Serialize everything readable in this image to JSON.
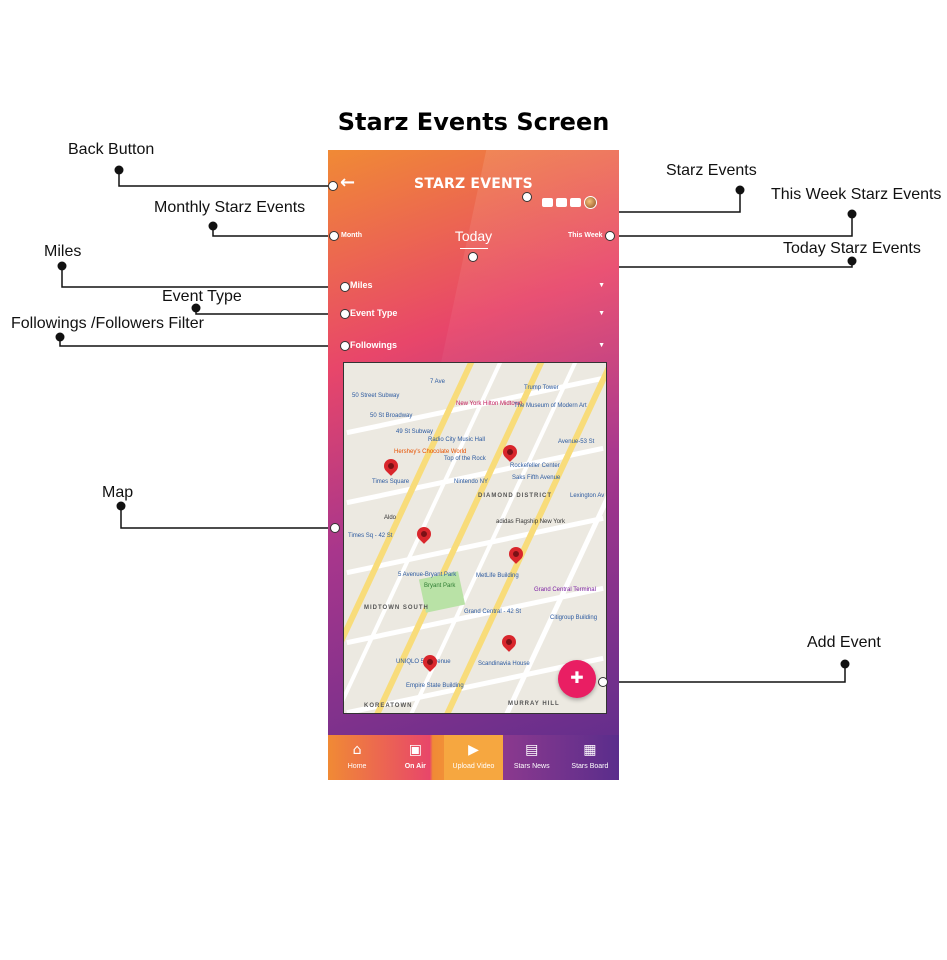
{
  "page": {
    "title": "Starz Events  Screen"
  },
  "annotations": {
    "back_button": "Back Button",
    "monthly": "Monthly Starz Events",
    "miles": "Miles",
    "event_type": "Event Type",
    "followings_filter": "Followings /Followers Filter",
    "map": "Map",
    "starz_events": "Starz Events",
    "this_week": "This Week Starz Events",
    "today": "Today Starz Events",
    "add_event": "Add Event"
  },
  "app": {
    "header": {
      "back_icon": "arrow-left-icon",
      "title": "STARZ EVENTS"
    },
    "segments": {
      "month": "Month",
      "today": "Today",
      "this_week": "This Week"
    },
    "filters": {
      "miles": "Miles",
      "event_type": "Event Type",
      "followings": "Followings"
    },
    "map": {
      "labels": [
        "7 Ave",
        "Trump Tower",
        "50 Street Subway",
        "New York Hilton Midtown",
        "The Museum of Modern Art",
        "50 St Broadway",
        "49 St Subway",
        "Radio City Music Hall",
        "Avenue-53 St",
        "Hershey's Chocolate World",
        "Top of the Rock",
        "Rockefeller Center",
        "Times Square",
        "Nintendo NY",
        "Saks Fifth Avenue",
        "DIAMOND DISTRICT",
        "Lexington Av",
        "Aldo",
        "adidas Flagship New York",
        "Times Sq - 42 St",
        "5 Avenue-Bryant Park",
        "MetLife Building",
        "Bryant Park",
        "Grand Central Terminal",
        "MIDTOWN SOUTH",
        "Grand Central - 42 St",
        "Citigroup Building",
        "UNIQLO 5th Avenue",
        "Scandinavia House",
        "Empire State Building",
        "KOREATOWN",
        "MURRAY HILL"
      ]
    },
    "fab_icon": "calendar-add-icon",
    "tabs": [
      {
        "label": "Home",
        "icon": "home-icon"
      },
      {
        "label": "On Air",
        "icon": "tv-icon"
      },
      {
        "label": "Upload Video",
        "icon": "video-camera-icon"
      },
      {
        "label": "Stars News",
        "icon": "news-icon"
      },
      {
        "label": "Stars Board",
        "icon": "calendar-icon"
      }
    ]
  },
  "colors": {
    "accent": "#e91e63",
    "orange": "#f08a35",
    "purple": "#5a2d8c"
  }
}
